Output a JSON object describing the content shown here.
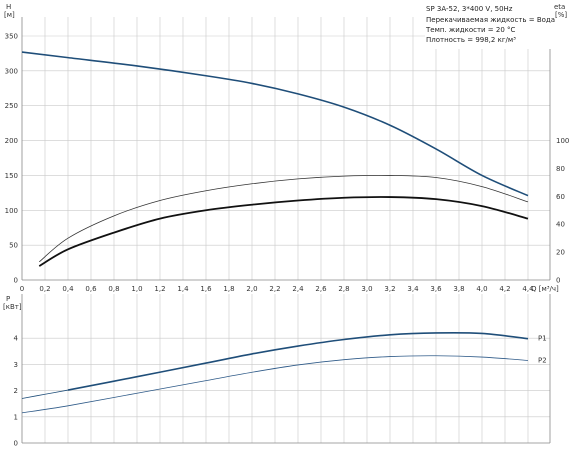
{
  "info": {
    "title": "SP 3A-52, 3*400 V, 50Hz",
    "lines": [
      "Перекачиваемая жидкость = Вода",
      "Темп. жидкости = 20 °C",
      "Плотность = 998,2 кг/м³"
    ]
  },
  "chart_data": [
    {
      "type": "line",
      "id": "head-efficiency",
      "y_left_label": [
        "H",
        "[м]"
      ],
      "y_right_label": [
        "eta",
        "[%]"
      ],
      "x_label": "Q [м³/ч]",
      "xlim": [
        0,
        4.6
      ],
      "ylim_left": [
        0,
        350
      ],
      "ylim_right": [
        0,
        175
      ],
      "x_ticks": [
        0,
        0.2,
        0.4,
        0.6,
        0.8,
        1.0,
        1.2,
        1.4,
        1.6,
        1.8,
        2.0,
        2.2,
        2.4,
        2.6,
        2.8,
        3.0,
        3.2,
        3.4,
        3.6,
        3.8,
        4.0,
        4.2,
        4.4
      ],
      "x_tick_labels": [
        "0",
        "0,2",
        "0,4",
        "0,6",
        "0,8",
        "1,0",
        "1,2",
        "1,4",
        "1,6",
        "1,8",
        "2,0",
        "2,2",
        "2,4",
        "2,6",
        "2,8",
        "3,0",
        "3,2",
        "3,4",
        "3,6",
        "3,8",
        "4,0",
        "4,2",
        "4,4"
      ],
      "y_left_ticks": [
        0,
        50,
        100,
        150,
        200,
        250,
        300,
        350
      ],
      "y_right_ticks": [
        0,
        20,
        40,
        60,
        80,
        100
      ],
      "grid": true,
      "series": [
        {
          "axis": "left",
          "color": "#1f4e79",
          "width": 1.6,
          "x": [
            0,
            0.4,
            1.0,
            1.6,
            2.0,
            2.4,
            2.8,
            3.2,
            3.6,
            4.0,
            4.4
          ],
          "y": [
            327,
            319,
            307,
            293,
            282,
            267,
            248,
            222,
            188,
            150,
            121
          ]
        },
        {
          "axis": "right",
          "color": "#111111",
          "width": 1.8,
          "x": [
            0.15,
            0.4,
            0.8,
            1.2,
            1.6,
            2.0,
            2.4,
            2.8,
            3.2,
            3.6,
            4.0,
            4.4
          ],
          "y": [
            10,
            22,
            34,
            44,
            50,
            54,
            57,
            59,
            59.5,
            58,
            53,
            44
          ]
        },
        {
          "axis": "right",
          "color": "#333333",
          "width": 0.8,
          "x": [
            0.15,
            0.4,
            0.8,
            1.2,
            1.6,
            2.0,
            2.4,
            2.8,
            3.2,
            3.6,
            4.0,
            4.4
          ],
          "y": [
            13,
            30,
            46,
            57,
            64,
            69,
            72.5,
            74.5,
            75,
            73.5,
            67,
            56
          ]
        }
      ]
    },
    {
      "type": "line",
      "id": "power",
      "y_label": [
        "P",
        "[кВт]"
      ],
      "xlim": [
        0,
        4.6
      ],
      "ylim": [
        0,
        5
      ],
      "y_ticks": [
        0,
        1,
        2,
        3,
        4
      ],
      "grid": true,
      "series": [
        {
          "name": "P1",
          "color": "#1f4e79",
          "width": 1.6,
          "x": [
            0.4,
            1.0,
            1.6,
            2.0,
            2.4,
            2.8,
            3.2,
            3.6,
            4.0,
            4.4
          ],
          "y": [
            2.02,
            2.53,
            3.05,
            3.4,
            3.7,
            3.95,
            4.13,
            4.2,
            4.18,
            3.98
          ]
        },
        {
          "name": "P2",
          "color": "#2e5a88",
          "width": 0.8,
          "x": [
            0,
            0.4,
            1.0,
            1.6,
            2.0,
            2.4,
            2.8,
            3.2,
            3.6,
            4.0,
            4.4
          ],
          "y": [
            1.15,
            1.42,
            1.9,
            2.38,
            2.7,
            2.98,
            3.18,
            3.3,
            3.33,
            3.28,
            3.15
          ]
        },
        {
          "name": "",
          "color": "#1f4e79",
          "width": 0.8,
          "x": [
            0,
            0.2,
            0.4
          ],
          "y": [
            1.7,
            1.86,
            2.02
          ]
        }
      ]
    }
  ]
}
